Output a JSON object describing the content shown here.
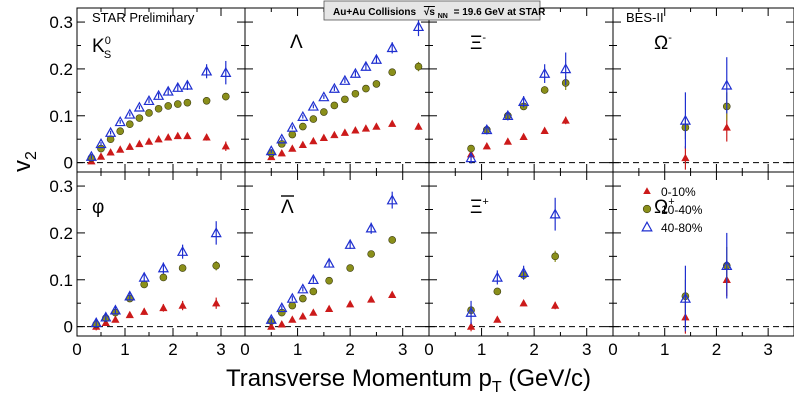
{
  "figure": {
    "banner": "Au+Au Collisions",
    "energy_symbol": "√s",
    "energy_subscript": "NN",
    "energy_text": "= 19.6 GeV at STAR",
    "ylabel_main": "v",
    "ylabel_sub": "2",
    "xlabel_main": "Transverse Momentum p",
    "xlabel_sub": "T",
    "xlabel_unit": " (GeV/c)",
    "star_label": "STAR Preliminary",
    "bes_label": "BES-II"
  },
  "legend": {
    "placement": "bottom-right panel",
    "entries": [
      {
        "label": "0-10%",
        "color": "#cc1a1a",
        "marker": "filled-triangle"
      },
      {
        "label": "10-40%",
        "color": "#8a8f1a",
        "marker": "filled-circle"
      },
      {
        "label": "40-80%",
        "color": "#1f2fd0",
        "marker": "open-triangle"
      }
    ]
  },
  "colors": {
    "central": "#cc1a1a",
    "mid": "#8a8f1a",
    "peripheral": "#1f2fd0",
    "frame": "#000000"
  },
  "chart_data": {
    "type": "scatter",
    "layout": "2 rows x 4 columns, shared axes",
    "xlim": [
      0,
      3.5
    ],
    "ylim": [
      -0.02,
      0.33
    ],
    "xticks": [
      "0",
      "1",
      "2",
      "3"
    ],
    "yticks": [
      "0",
      "0.1",
      "0.2",
      "0.3"
    ],
    "reference_lines": [
      "y = 0 (dashed)",
      "x = 0 (dashed)"
    ],
    "panels": [
      {
        "name": "K",
        "row": 0,
        "col": 0,
        "series": [
          {
            "name": "0-10%",
            "x": [
              0.3,
              0.5,
              0.7,
              0.9,
              1.1,
              1.3,
              1.5,
              1.7,
              1.9,
              2.1,
              2.3,
              2.7,
              3.1
            ],
            "y": [
              0.003,
              0.013,
              0.022,
              0.028,
              0.034,
              0.04,
              0.045,
              0.05,
              0.054,
              0.057,
              0.057,
              0.054,
              0.035
            ],
            "err": [
              0.004,
              0.003,
              0.003,
              0.003,
              0.003,
              0.003,
              0.003,
              0.003,
              0.004,
              0.004,
              0.005,
              0.007,
              0.01
            ]
          },
          {
            "name": "10-40%",
            "x": [
              0.3,
              0.5,
              0.7,
              0.9,
              1.1,
              1.3,
              1.5,
              1.7,
              1.9,
              2.1,
              2.3,
              2.7,
              3.1
            ],
            "y": [
              0.01,
              0.03,
              0.05,
              0.067,
              0.082,
              0.095,
              0.106,
              0.115,
              0.121,
              0.125,
              0.128,
              0.132,
              0.141
            ],
            "err": [
              0.004,
              0.003,
              0.003,
              0.003,
              0.003,
              0.003,
              0.003,
              0.003,
              0.004,
              0.004,
              0.005,
              0.006,
              0.008
            ]
          },
          {
            "name": "40-80%",
            "x": [
              0.3,
              0.5,
              0.7,
              0.9,
              1.1,
              1.3,
              1.5,
              1.7,
              1.9,
              2.1,
              2.3,
              2.7,
              3.1
            ],
            "y": [
              0.013,
              0.04,
              0.064,
              0.087,
              0.103,
              0.118,
              0.132,
              0.143,
              0.152,
              0.16,
              0.165,
              0.195,
              0.192
            ],
            "err": [
              0.005,
              0.004,
              0.004,
              0.004,
              0.004,
              0.004,
              0.005,
              0.006,
              0.007,
              0.008,
              0.01,
              0.015,
              0.025
            ]
          }
        ]
      },
      {
        "name": "Λ",
        "row": 0,
        "col": 1,
        "series": [
          {
            "name": "0-10%",
            "x": [
              0.5,
              0.7,
              0.9,
              1.1,
              1.3,
              1.5,
              1.7,
              1.9,
              2.1,
              2.3,
              2.5,
              2.8,
              3.3
            ],
            "y": [
              0.012,
              0.02,
              0.03,
              0.038,
              0.046,
              0.053,
              0.059,
              0.064,
              0.069,
              0.073,
              0.077,
              0.083,
              0.077
            ],
            "err": [
              0.003,
              0.003,
              0.003,
              0.003,
              0.003,
              0.003,
              0.003,
              0.003,
              0.003,
              0.003,
              0.004,
              0.004,
              0.007
            ]
          },
          {
            "name": "10-40%",
            "x": [
              0.5,
              0.7,
              0.9,
              1.1,
              1.3,
              1.5,
              1.7,
              1.9,
              2.1,
              2.3,
              2.5,
              2.8,
              3.3
            ],
            "y": [
              0.02,
              0.04,
              0.06,
              0.077,
              0.093,
              0.108,
              0.122,
              0.135,
              0.147,
              0.158,
              0.168,
              0.193,
              0.205
            ],
            "err": [
              0.003,
              0.003,
              0.003,
              0.003,
              0.003,
              0.003,
              0.003,
              0.003,
              0.004,
              0.004,
              0.005,
              0.006,
              0.01
            ]
          },
          {
            "name": "40-80%",
            "x": [
              0.5,
              0.7,
              0.9,
              1.1,
              1.3,
              1.5,
              1.7,
              1.9,
              2.1,
              2.3,
              2.5,
              2.8,
              3.3
            ],
            "y": [
              0.025,
              0.05,
              0.075,
              0.098,
              0.12,
              0.14,
              0.158,
              0.175,
              0.19,
              0.205,
              0.22,
              0.245,
              0.29
            ],
            "err": [
              0.004,
              0.004,
              0.004,
              0.004,
              0.004,
              0.004,
              0.005,
              0.005,
              0.006,
              0.007,
              0.008,
              0.012,
              0.02
            ]
          }
        ]
      },
      {
        "name": "Ξ",
        "row": 0,
        "col": 2,
        "series": [
          {
            "name": "0-10%",
            "x": [
              0.8,
              1.1,
              1.5,
              1.8,
              2.2,
              2.6
            ],
            "y": [
              0.018,
              0.035,
              0.045,
              0.055,
              0.068,
              0.09
            ],
            "err": [
              0.005,
              0.005,
              0.004,
              0.004,
              0.005,
              0.008
            ]
          },
          {
            "name": "10-40%",
            "x": [
              0.8,
              1.1,
              1.5,
              1.8,
              2.2,
              2.6
            ],
            "y": [
              0.03,
              0.07,
              0.1,
              0.12,
              0.155,
              0.17
            ],
            "err": [
              0.006,
              0.005,
              0.005,
              0.006,
              0.008,
              0.015
            ]
          },
          {
            "name": "40-80%",
            "x": [
              0.8,
              1.1,
              1.5,
              1.8,
              2.2,
              2.6
            ],
            "y": [
              0.01,
              0.07,
              0.1,
              0.13,
              0.19,
              0.2
            ],
            "err": [
              0.012,
              0.01,
              0.01,
              0.012,
              0.02,
              0.035
            ]
          }
        ]
      },
      {
        "name": "Ω",
        "row": 0,
        "col": 3,
        "series": [
          {
            "name": "0-10%",
            "x": [
              1.4,
              2.2
            ],
            "y": [
              0.01,
              0.075
            ],
            "err": [
              0.025,
              0.03
            ]
          },
          {
            "name": "10-40%",
            "x": [
              1.4,
              2.2
            ],
            "y": [
              0.075,
              0.12
            ],
            "err": [
              0.025,
              0.03
            ]
          },
          {
            "name": "40-80%",
            "x": [
              1.4,
              2.2
            ],
            "y": [
              0.09,
              0.165
            ],
            "err": [
              0.06,
              0.06
            ]
          }
        ]
      },
      {
        "name": "φ",
        "row": 1,
        "col": 0,
        "series": [
          {
            "name": "0-10%",
            "x": [
              0.4,
              0.6,
              0.8,
              1.1,
              1.4,
              1.8,
              2.2,
              2.9
            ],
            "y": [
              0.0,
              0.008,
              0.015,
              0.025,
              0.032,
              0.04,
              0.045,
              0.05
            ],
            "err": [
              0.008,
              0.006,
              0.006,
              0.006,
              0.007,
              0.008,
              0.01,
              0.012
            ]
          },
          {
            "name": "10-40%",
            "x": [
              0.4,
              0.6,
              0.8,
              1.1,
              1.4,
              1.8,
              2.2,
              2.9
            ],
            "y": [
              0.005,
              0.018,
              0.03,
              0.06,
              0.09,
              0.105,
              0.125,
              0.13
            ],
            "err": [
              0.005,
              0.004,
              0.004,
              0.004,
              0.005,
              0.006,
              0.007,
              0.01
            ]
          },
          {
            "name": "40-80%",
            "x": [
              0.4,
              0.6,
              0.8,
              1.1,
              1.4,
              1.8,
              2.2,
              2.9
            ],
            "y": [
              0.008,
              0.02,
              0.035,
              0.065,
              0.105,
              0.125,
              0.16,
              0.2
            ],
            "err": [
              0.01,
              0.008,
              0.008,
              0.008,
              0.01,
              0.012,
              0.015,
              0.025
            ]
          }
        ]
      },
      {
        "name": "Λ-bar",
        "row": 1,
        "col": 1,
        "series": [
          {
            "name": "0-10%",
            "x": [
              0.5,
              0.7,
              0.9,
              1.1,
              1.3,
              1.6,
              2.0,
              2.4,
              2.8
            ],
            "y": [
              0.0,
              0.005,
              0.015,
              0.022,
              0.03,
              0.038,
              0.048,
              0.058,
              0.068
            ],
            "err": [
              0.004,
              0.004,
              0.004,
              0.004,
              0.004,
              0.004,
              0.004,
              0.005,
              0.006
            ]
          },
          {
            "name": "10-40%",
            "x": [
              0.5,
              0.7,
              0.9,
              1.1,
              1.3,
              1.6,
              2.0,
              2.4,
              2.8
            ],
            "y": [
              0.012,
              0.03,
              0.045,
              0.06,
              0.075,
              0.098,
              0.125,
              0.155,
              0.185
            ],
            "err": [
              0.004,
              0.004,
              0.004,
              0.004,
              0.004,
              0.005,
              0.005,
              0.006,
              0.008
            ]
          },
          {
            "name": "40-80%",
            "x": [
              0.5,
              0.7,
              0.9,
              1.1,
              1.3,
              1.6,
              2.0,
              2.4,
              2.8
            ],
            "y": [
              0.015,
              0.04,
              0.06,
              0.08,
              0.1,
              0.135,
              0.175,
              0.21,
              0.27
            ],
            "err": [
              0.006,
              0.005,
              0.005,
              0.005,
              0.006,
              0.007,
              0.009,
              0.012,
              0.018
            ]
          }
        ]
      },
      {
        "name": "Ξ+",
        "row": 1,
        "col": 2,
        "series": [
          {
            "name": "0-10%",
            "x": [
              0.8,
              1.3,
              1.8,
              2.4
            ],
            "y": [
              0.0,
              0.015,
              0.05,
              0.045
            ],
            "err": [
              0.01,
              0.006,
              0.006,
              0.008
            ]
          },
          {
            "name": "10-40%",
            "x": [
              0.8,
              1.3,
              1.8,
              2.4
            ],
            "y": [
              0.035,
              0.075,
              0.11,
              0.15
            ],
            "err": [
              0.01,
              0.006,
              0.008,
              0.012
            ]
          },
          {
            "name": "40-80%",
            "x": [
              0.8,
              1.3,
              1.8,
              2.4
            ],
            "y": [
              0.03,
              0.105,
              0.115,
              0.24
            ],
            "err": [
              0.025,
              0.015,
              0.015,
              0.035
            ]
          }
        ]
      },
      {
        "name": "Ω+",
        "row": 1,
        "col": 3,
        "series": [
          {
            "name": "0-10%",
            "x": [
              1.4,
              2.2
            ],
            "y": [
              0.02,
              0.1
            ],
            "err": [
              0.035,
              0.035
            ]
          },
          {
            "name": "10-40%",
            "x": [
              1.4,
              2.2
            ],
            "y": [
              0.065,
              0.13
            ],
            "err": [
              0.035,
              0.04
            ]
          },
          {
            "name": "40-80%",
            "x": [
              1.4,
              2.2
            ],
            "y": [
              0.06,
              0.13
            ],
            "err": [
              0.07,
              0.07
            ]
          }
        ]
      }
    ]
  }
}
